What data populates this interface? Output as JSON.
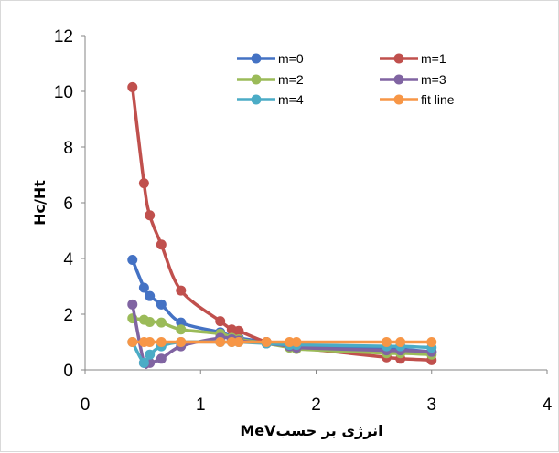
{
  "chart_data": {
    "type": "line",
    "xlabel": "انرژی بر حسبMeV",
    "ylabel": "Hc/Ht",
    "xlim": [
      0,
      4
    ],
    "ylim": [
      0,
      12
    ],
    "xticks": [
      "0",
      "1",
      "2",
      "3",
      "4"
    ],
    "yticks": [
      "0",
      "2",
      "4",
      "6",
      "8",
      "10",
      "12"
    ],
    "grid": false,
    "legend_position": "top-right",
    "series": [
      {
        "name": "m=0",
        "color": "#4472C4",
        "x": [
          0.41,
          0.51,
          0.56,
          0.66,
          0.83,
          1.17,
          1.27,
          1.33,
          1.57,
          1.77,
          1.83,
          2.61,
          2.73,
          3.0
        ],
        "y": [
          3.95,
          2.95,
          2.65,
          2.35,
          1.7,
          1.35,
          1.2,
          1.15,
          1.0,
          0.9,
          0.85,
          0.8,
          0.75,
          0.65
        ]
      },
      {
        "name": "m=1",
        "color": "#C0504D",
        "x": [
          0.41,
          0.51,
          0.56,
          0.66,
          0.83,
          1.17,
          1.27,
          1.33,
          1.57,
          1.77,
          1.83,
          2.61,
          2.73,
          3.0
        ],
        "y": [
          10.15,
          6.7,
          5.55,
          4.5,
          2.85,
          1.75,
          1.45,
          1.4,
          1.0,
          0.85,
          0.8,
          0.45,
          0.4,
          0.35
        ]
      },
      {
        "name": "m=2",
        "color": "#9BBB59",
        "x": [
          0.41,
          0.51,
          0.56,
          0.66,
          0.83,
          1.17,
          1.27,
          1.33,
          1.57,
          1.77,
          1.83,
          2.61,
          2.73,
          3.0
        ],
        "y": [
          1.85,
          1.8,
          1.72,
          1.7,
          1.45,
          1.3,
          1.15,
          1.1,
          0.95,
          0.8,
          0.75,
          0.6,
          0.6,
          0.55
        ]
      },
      {
        "name": "m=3",
        "color": "#8064A2",
        "x": [
          0.41,
          0.51,
          0.56,
          0.66,
          0.83,
          1.17,
          1.27,
          1.33,
          1.57,
          1.77,
          1.83,
          2.61,
          2.73,
          3.0
        ],
        "y": [
          2.35,
          0.25,
          0.25,
          0.4,
          0.85,
          1.15,
          1.1,
          1.05,
          0.95,
          0.85,
          0.8,
          0.7,
          0.7,
          0.65
        ]
      },
      {
        "name": "m=4",
        "color": "#4BACC6",
        "x": [
          0.41,
          0.51,
          0.56,
          0.66,
          0.83,
          1.17,
          1.27,
          1.33,
          1.57,
          1.77,
          1.83,
          2.61,
          2.73,
          3.0
        ],
        "y": [
          1.0,
          0.25,
          0.55,
          0.85,
          1.0,
          1.0,
          1.0,
          1.0,
          0.95,
          0.9,
          0.9,
          0.85,
          0.85,
          0.8
        ]
      },
      {
        "name": "fit line",
        "color": "#F79646",
        "x": [
          0.41,
          0.51,
          0.56,
          0.66,
          0.83,
          1.17,
          1.27,
          1.33,
          1.57,
          1.77,
          1.83,
          2.61,
          2.73,
          3.0
        ],
        "y": [
          1.0,
          1.0,
          1.0,
          1.0,
          1.0,
          1.0,
          1.0,
          1.0,
          1.0,
          1.0,
          1.0,
          1.0,
          1.0,
          1.0
        ]
      }
    ]
  }
}
